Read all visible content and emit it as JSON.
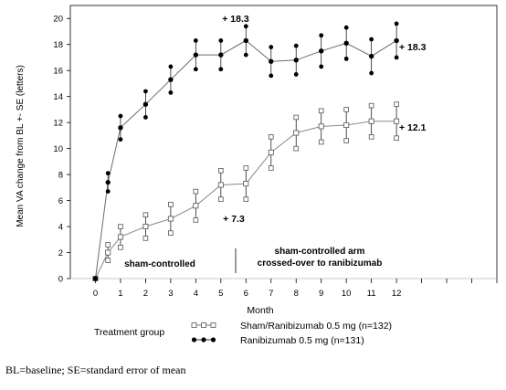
{
  "chart_data": {
    "type": "line",
    "ylabel": "Mean VA change from BL +- SE (letters)",
    "xlabel": "Month",
    "x": [
      0,
      0.5,
      1,
      2,
      3,
      4,
      5,
      6,
      7,
      8,
      9,
      10,
      11,
      12
    ],
    "xlim": [
      -1,
      16
    ],
    "ylim": [
      0,
      21
    ],
    "xticks": [
      0,
      1,
      2,
      3,
      4,
      5,
      6,
      7,
      8,
      9,
      10,
      11,
      12,
      13,
      14,
      15,
      16
    ],
    "xtick_labels": [
      "0",
      "1",
      "2",
      "3",
      "4",
      "5",
      "6",
      "7",
      "8",
      "9",
      "10",
      "11",
      "12",
      "",
      "",
      "",
      ""
    ],
    "yticks": [
      0,
      2,
      4,
      6,
      8,
      10,
      12,
      14,
      16,
      18,
      20
    ],
    "series": [
      {
        "name": "Sham/Ranibizumab 0.5 mg (n=132)",
        "marker": "square",
        "values": [
          0,
          2.0,
          3.2,
          4.0,
          4.6,
          5.6,
          7.2,
          7.3,
          9.7,
          11.2,
          11.7,
          11.8,
          12.1,
          12.1
        ],
        "err": [
          0,
          0.6,
          0.8,
          0.9,
          1.1,
          1.1,
          1.1,
          1.2,
          1.2,
          1.2,
          1.2,
          1.2,
          1.2,
          1.3
        ]
      },
      {
        "name": "Ranibizumab 0.5 mg (n=131)",
        "marker": "circle",
        "values": [
          0,
          7.4,
          11.6,
          13.4,
          15.3,
          17.2,
          17.2,
          18.3,
          16.7,
          16.8,
          17.5,
          18.1,
          17.1,
          18.3
        ],
        "err": [
          0,
          0.7,
          0.9,
          1.0,
          1.0,
          1.1,
          1.1,
          1.1,
          1.1,
          1.1,
          1.2,
          1.2,
          1.3,
          1.3
        ]
      }
    ],
    "annotations": [
      {
        "text": "+ 18.3",
        "x": 6,
        "y": 18.3,
        "position": "above"
      },
      {
        "text": "+ 18.3",
        "x": 12,
        "y": 18.3,
        "position": "right"
      },
      {
        "text": "+ 12.1",
        "x": 12,
        "y": 12.1,
        "position": "right"
      },
      {
        "text": "+ 7.3",
        "x": 6,
        "y": 7.3,
        "position": "below"
      }
    ],
    "phase_divider_x": 6,
    "phase_labels": [
      {
        "lines": [
          "sham-controlled"
        ],
        "x_range": [
          0,
          6
        ]
      },
      {
        "lines": [
          "sham-controlled arm",
          "crossed-over to ranibizumab"
        ],
        "x_range": [
          6,
          12
        ]
      }
    ],
    "legend": {
      "title": "Treatment group",
      "placement": "bottom"
    }
  },
  "footnote": "BL=baseline; SE=standard error of mean"
}
